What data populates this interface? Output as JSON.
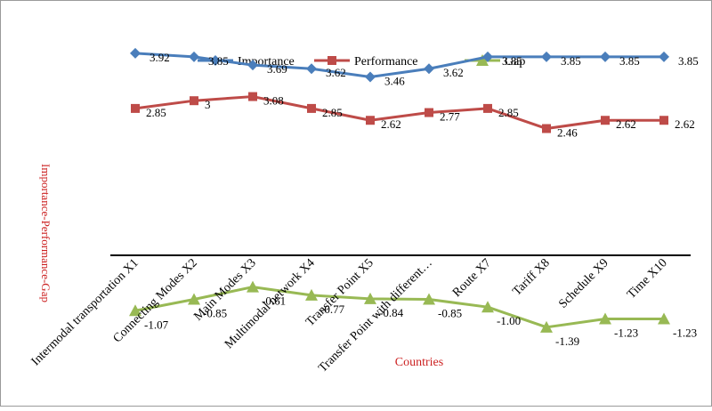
{
  "chart_data": {
    "type": "line",
    "title": "",
    "xlabel": "Countries",
    "ylabel": "Importance-Performance-Gap",
    "categories": [
      "Intermodal transportation  X1",
      "Connecting Modes X2",
      "Main Modes X3",
      "Multimodal network X4",
      "Transfer Point X5",
      "Transfer Point with different…",
      "Route X7",
      "Tariff X8",
      "Schedule X9",
      "Time X10"
    ],
    "series": [
      {
        "name": "Importance",
        "color": "#4a7ebb",
        "marker": "diamond",
        "values": [
          3.92,
          3.85,
          3.69,
          3.62,
          3.46,
          3.62,
          3.85,
          3.85,
          3.85,
          3.85
        ],
        "labels": [
          "3.92",
          "3.85",
          "3.69",
          "3.62",
          "3.46",
          "3.62",
          "3.85",
          "3.85",
          "3.85",
          "3.85"
        ]
      },
      {
        "name": "Performance",
        "color": "#be4b48",
        "marker": "square",
        "values": [
          2.85,
          3,
          3.08,
          2.85,
          2.62,
          2.77,
          2.85,
          2.46,
          2.62,
          2.62
        ],
        "labels": [
          "2.85",
          "3",
          "3.08",
          "2.85",
          "2.62",
          "2.77",
          "2.85",
          "2.46",
          "2.62",
          "2.62"
        ]
      },
      {
        "name": "Gap",
        "color": "#98b954",
        "marker": "triangle",
        "values": [
          -1.07,
          -0.85,
          -0.61,
          -0.77,
          -0.84,
          -0.85,
          -1.0,
          -1.39,
          -1.23,
          -1.23
        ],
        "labels": [
          "-1.07",
          "-0.85",
          "-0.61",
          "-0.77",
          "-0.84",
          "-0.85",
          "-1.00",
          "-1.39",
          "-1.23",
          "-1.23"
        ]
      }
    ],
    "ylim": [
      -1.6,
      4.4
    ],
    "grid": false,
    "legend": "top"
  }
}
